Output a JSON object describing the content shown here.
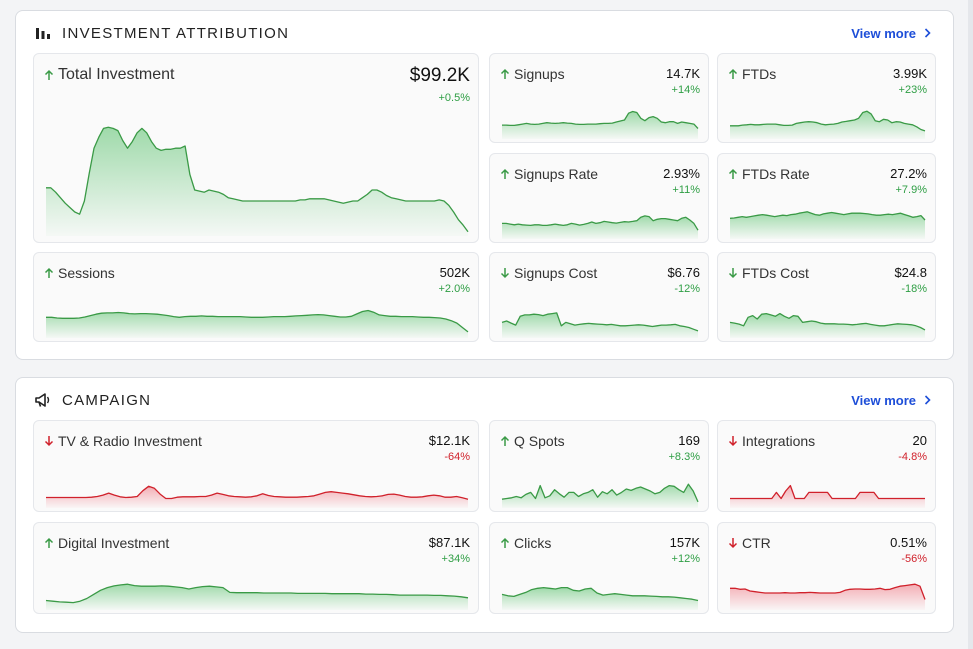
{
  "investment": {
    "title": "INVESTMENT ATTRIBUTION",
    "view_more": "View more",
    "cards": {
      "total": {
        "label": "Total Investment",
        "value": "$99.2K",
        "change": "+0.5%",
        "dir": "up",
        "tone": "pos",
        "spark": [
          42,
          42,
          38,
          33,
          28,
          24,
          20,
          18,
          30,
          55,
          78,
          88,
          96,
          97,
          96,
          94,
          85,
          78,
          84,
          92,
          96,
          92,
          84,
          78,
          76,
          77,
          77,
          78,
          78,
          80,
          54,
          40,
          39,
          38,
          40,
          39,
          38,
          36,
          33,
          32,
          31,
          30,
          30,
          30,
          30,
          30,
          30,
          30,
          30,
          30,
          30,
          30,
          30,
          31,
          31,
          32,
          32,
          32,
          32,
          31,
          30,
          29,
          28,
          29,
          30,
          30,
          33,
          36,
          40,
          40,
          38,
          35,
          33,
          32,
          31,
          30,
          30,
          30,
          30,
          30,
          30,
          30,
          31,
          30,
          26,
          20,
          13,
          8,
          2
        ]
      },
      "sessions": {
        "label": "Sessions",
        "value": "502K",
        "change": "+2.0%",
        "dir": "up",
        "tone": "pos",
        "spark": [
          55,
          55,
          53,
          52,
          52,
          52,
          53,
          56,
          60,
          64,
          67,
          68,
          68,
          69,
          68,
          66,
          65,
          66,
          66,
          65,
          64,
          62,
          60,
          57,
          55,
          57,
          58,
          58,
          59,
          58,
          58,
          57,
          57,
          57,
          57,
          57,
          56,
          55,
          55,
          55,
          56,
          57,
          57,
          57,
          58,
          59,
          60,
          61,
          62,
          63,
          62,
          60,
          58,
          56,
          56,
          58,
          65,
          72,
          75,
          70,
          62,
          60,
          58,
          58,
          57,
          57,
          57,
          56,
          55,
          55,
          54,
          53,
          50,
          45,
          38,
          25,
          12
        ]
      },
      "signups": {
        "label": "Signups",
        "value": "14.7K",
        "change": "+14%",
        "dir": "up",
        "tone": "pos",
        "spark": [
          35,
          35,
          34,
          34,
          36,
          38,
          40,
          38,
          37,
          38,
          40,
          42,
          41,
          40,
          41,
          42,
          41,
          40,
          38,
          37,
          37,
          38,
          38,
          38,
          39,
          40,
          40,
          41,
          44,
          47,
          50,
          70,
          75,
          72,
          55,
          48,
          57,
          60,
          55,
          44,
          42,
          45,
          45,
          40,
          44,
          42,
          40,
          38,
          25
        ]
      },
      "ftds": {
        "label": "FTDs",
        "value": "3.99K",
        "change": "+23%",
        "dir": "up",
        "tone": "pos",
        "spark": [
          33,
          33,
          33,
          35,
          36,
          37,
          36,
          36,
          37,
          38,
          38,
          38,
          36,
          34,
          34,
          35,
          40,
          42,
          44,
          45,
          44,
          42,
          38,
          36,
          37,
          38,
          40,
          44,
          46,
          48,
          50,
          55,
          72,
          76,
          68,
          48,
          45,
          52,
          50,
          42,
          45,
          44,
          40,
          38,
          36,
          30,
          22,
          18
        ]
      },
      "signups_rate": {
        "label": "Signups Rate",
        "value": "2.93%",
        "change": "+11%",
        "dir": "up",
        "tone": "pos",
        "spark": [
          40,
          40,
          38,
          36,
          38,
          36,
          35,
          34,
          36,
          36,
          34,
          34,
          36,
          38,
          36,
          34,
          36,
          40,
          38,
          35,
          37,
          40,
          44,
          40,
          42,
          46,
          44,
          42,
          41,
          43,
          45,
          44,
          46,
          48,
          58,
          62,
          60,
          48,
          52,
          54,
          54,
          52,
          50,
          48,
          55,
          58,
          50,
          40,
          20
        ]
      },
      "ftds_rate": {
        "label": "FTDs Rate",
        "value": "27.2%",
        "change": "+7.9%",
        "dir": "up",
        "tone": "pos",
        "spark": [
          55,
          56,
          58,
          60,
          58,
          60,
          62,
          64,
          66,
          64,
          62,
          60,
          62,
          64,
          63,
          66,
          67,
          70,
          72,
          74,
          70,
          66,
          64,
          68,
          70,
          72,
          70,
          68,
          66,
          68,
          70,
          70,
          70,
          69,
          68,
          66,
          64,
          64,
          66,
          67,
          66,
          68,
          70,
          66,
          62,
          58,
          60,
          63,
          50
        ]
      },
      "signups_cost": {
        "label": "Signups Cost",
        "value": "$6.76",
        "change": "-12%",
        "dir": "down",
        "tone": "pos",
        "spark": [
          40,
          44,
          38,
          32,
          58,
          62,
          62,
          64,
          63,
          60,
          64,
          66,
          68,
          30,
          40,
          36,
          32,
          34,
          36,
          37,
          36,
          35,
          34,
          33,
          34,
          32,
          30,
          30,
          31,
          32,
          33,
          32,
          30,
          28,
          30,
          32,
          32,
          33,
          34,
          30,
          28,
          25,
          20,
          15
        ]
      },
      "ftds_cost": {
        "label": "FTDs Cost",
        "value": "$24.8",
        "change": "-18%",
        "dir": "down",
        "tone": "pos",
        "spark": [
          40,
          38,
          35,
          30,
          55,
          60,
          50,
          64,
          66,
          62,
          58,
          66,
          58,
          52,
          60,
          58,
          40,
          42,
          44,
          42,
          38,
          36,
          36,
          36,
          35,
          35,
          34,
          33,
          34,
          36,
          37,
          34,
          32,
          30,
          30,
          32,
          34,
          36,
          35,
          34,
          33,
          30,
          25,
          18
        ]
      }
    }
  },
  "campaign": {
    "title": "CAMPAIGN",
    "view_more": "View more",
    "cards": {
      "tv_radio": {
        "label": "TV & Radio Investment",
        "value": "$12.1K",
        "change": "-64%",
        "dir": "down",
        "tone": "neg",
        "spark": [
          25,
          25,
          25,
          25,
          25,
          25,
          25,
          25,
          26,
          28,
          32,
          38,
          32,
          27,
          25,
          26,
          28,
          45,
          58,
          52,
          35,
          22,
          22,
          26,
          27,
          27,
          27,
          28,
          28,
          32,
          38,
          34,
          30,
          28,
          27,
          26,
          27,
          30,
          36,
          31,
          28,
          27,
          26,
          26,
          26,
          27,
          28,
          30,
          35,
          40,
          42,
          40,
          38,
          36,
          33,
          30,
          28,
          27,
          28,
          30,
          34,
          35,
          32,
          28,
          26,
          26,
          27,
          30,
          32,
          30,
          26,
          26,
          28,
          24,
          20
        ]
      },
      "q_spots": {
        "label": "Q Spots",
        "value": "169",
        "change": "+8.3%",
        "dir": "up",
        "tone": "pos",
        "spark": [
          20,
          22,
          24,
          28,
          24,
          34,
          40,
          22,
          60,
          24,
          30,
          48,
          36,
          26,
          40,
          40,
          28,
          36,
          40,
          48,
          26,
          42,
          36,
          48,
          32,
          40,
          50,
          46,
          52,
          56,
          50,
          44,
          36,
          40,
          52,
          60,
          58,
          48,
          40,
          64,
          44,
          12
        ]
      },
      "integrations": {
        "label": "Integrations",
        "value": "20",
        "change": "-4.8%",
        "dir": "down",
        "tone": "neg",
        "spark": [
          22,
          22,
          22,
          22,
          22,
          22,
          22,
          22,
          22,
          22,
          40,
          22,
          44,
          60,
          22,
          22,
          22,
          40,
          40,
          40,
          40,
          40,
          22,
          22,
          22,
          22,
          22,
          22,
          40,
          40,
          40,
          40,
          22,
          22,
          22,
          22,
          22,
          22,
          22,
          22,
          22,
          22,
          22
        ]
      },
      "digital": {
        "label": "Digital Investment",
        "value": "$87.1K",
        "change": "+34%",
        "dir": "up",
        "tone": "pos",
        "spark": [
          22,
          20,
          18,
          17,
          16,
          20,
          28,
          40,
          52,
          60,
          65,
          68,
          70,
          66,
          64,
          64,
          64,
          65,
          64,
          62,
          60,
          56,
          60,
          63,
          64,
          62,
          60,
          46,
          45,
          45,
          45,
          45,
          44,
          44,
          44,
          44,
          44,
          43,
          43,
          43,
          43,
          43,
          42,
          42,
          42,
          42,
          42,
          41,
          41,
          40,
          40,
          39,
          38,
          38,
          38,
          38,
          38,
          37,
          37,
          36,
          35,
          33,
          30
        ]
      },
      "clicks": {
        "label": "Clicks",
        "value": "157K",
        "change": "+12%",
        "dir": "up",
        "tone": "pos",
        "spark": [
          40,
          36,
          34,
          40,
          46,
          54,
          58,
          60,
          58,
          56,
          60,
          60,
          52,
          50,
          56,
          58,
          44,
          38,
          40,
          42,
          40,
          38,
          36,
          36,
          36,
          35,
          34,
          33,
          33,
          32,
          30,
          28,
          26,
          22
        ]
      },
      "ctr": {
        "label": "CTR",
        "value": "0.51%",
        "change": "-56%",
        "dir": "down",
        "tone": "neg",
        "spark": [
          58,
          58,
          55,
          56,
          50,
          48,
          46,
          44,
          44,
          44,
          44,
          45,
          44,
          44,
          45,
          45,
          46,
          45,
          44,
          44,
          44,
          44,
          46,
          52,
          55,
          56,
          56,
          55,
          55,
          56,
          58,
          54,
          55,
          60,
          64,
          66,
          68,
          70,
          64,
          25
        ]
      }
    }
  },
  "colors": {
    "pos_line": "#3a9a46",
    "pos_fill": "#8fd49c",
    "neg_line": "#d0212b",
    "neg_fill": "#f2a0a8",
    "accent": "#1d4ed8"
  }
}
